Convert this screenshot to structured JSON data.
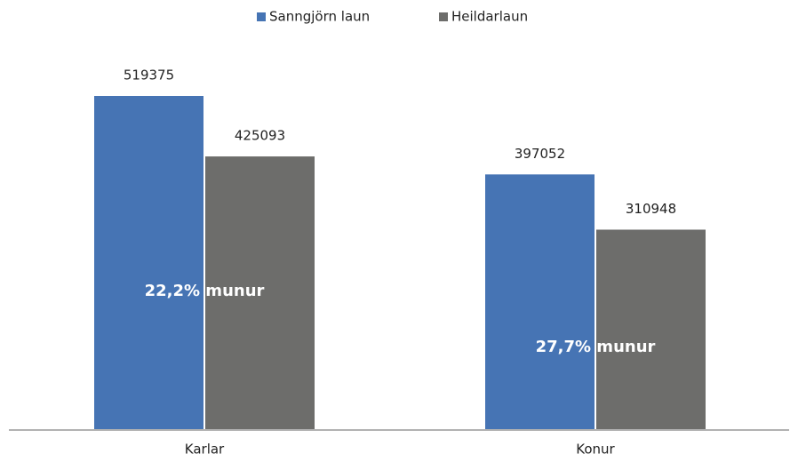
{
  "chart_data": {
    "type": "bar",
    "categories": [
      "Karlar",
      "Konur"
    ],
    "series": [
      {
        "name": "Sanngjörn laun",
        "color": "#4674b4",
        "values": [
          519375,
          397052
        ]
      },
      {
        "name": "Heildarlaun",
        "color": "#6d6d6b",
        "values": [
          425093,
          310948
        ]
      }
    ],
    "annotations": [
      "22,2% munur",
      "27,7% munur"
    ],
    "legend": "top"
  }
}
